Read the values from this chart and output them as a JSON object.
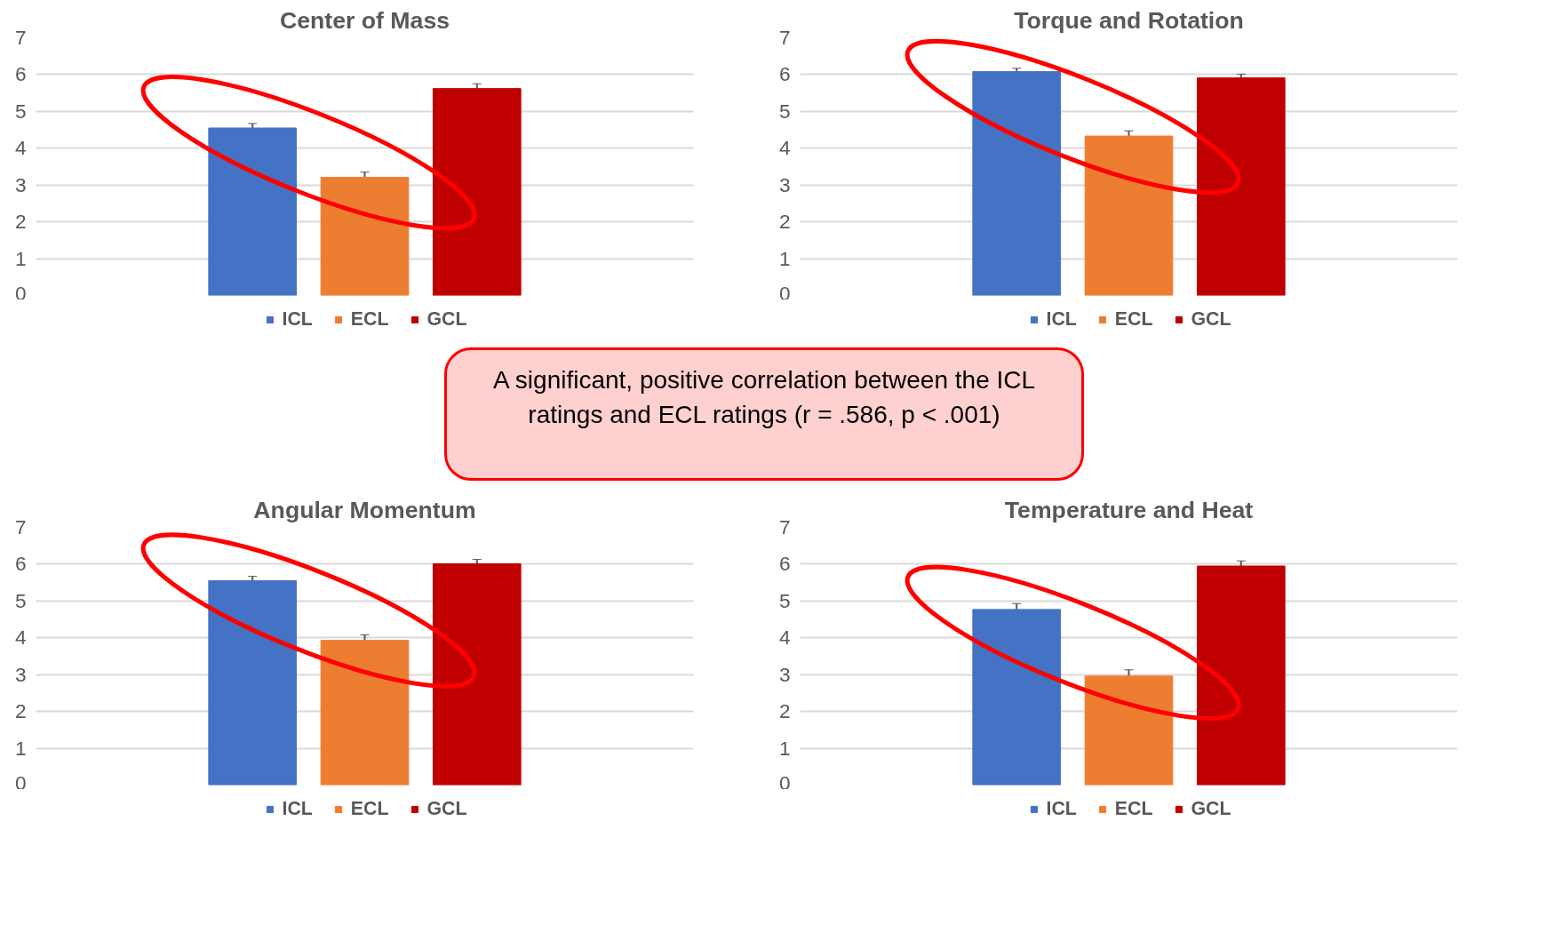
{
  "chart_data": [
    {
      "type": "bar",
      "title": "Center of Mass",
      "categories": [
        null
      ],
      "ylim": [
        0,
        7
      ],
      "yticks": [
        0,
        1,
        2,
        3,
        4,
        5,
        6,
        7
      ],
      "grid": "y",
      "legend": "bottom",
      "series": [
        {
          "name": "ICL",
          "color": "#4472c4",
          "values": [
            4.55
          ],
          "errors": [
            0.12
          ]
        },
        {
          "name": "ECL",
          "color": "#ed7d31",
          "values": [
            3.21
          ],
          "errors": [
            0.14
          ]
        },
        {
          "name": "GCL",
          "color": "#c00000",
          "values": [
            5.62
          ],
          "errors": [
            0.13
          ]
        }
      ]
    },
    {
      "type": "bar",
      "title": "Torque and Rotation",
      "categories": [
        null
      ],
      "ylim": [
        0,
        7
      ],
      "yticks": [
        0,
        1,
        2,
        3,
        4,
        5,
        6,
        7
      ],
      "grid": "y",
      "legend": "bottom",
      "series": [
        {
          "name": "ICL",
          "color": "#4472c4",
          "values": [
            6.08
          ],
          "errors": [
            0.09
          ]
        },
        {
          "name": "ECL",
          "color": "#ed7d31",
          "values": [
            4.33
          ],
          "errors": [
            0.14
          ]
        },
        {
          "name": "GCL",
          "color": "#c00000",
          "values": [
            5.91
          ],
          "errors": [
            0.1
          ]
        }
      ]
    },
    {
      "type": "other",
      "annotations": [
        "A significant, positive correlation between the ICL ratings and ECL ratings (r = .586, p < .001)"
      ]
    },
    {
      "type": "bar",
      "title": "Angular Momentum",
      "categories": [
        null
      ],
      "ylim": [
        0,
        7
      ],
      "yticks": [
        0,
        1,
        2,
        3,
        4,
        5,
        6,
        7
      ],
      "grid": "y",
      "legend": "bottom",
      "series": [
        {
          "name": "ICL",
          "color": "#4472c4",
          "values": [
            5.55
          ],
          "errors": [
            0.12
          ]
        },
        {
          "name": "ECL",
          "color": "#ed7d31",
          "values": [
            3.93
          ],
          "errors": [
            0.15
          ]
        },
        {
          "name": "GCL",
          "color": "#c00000",
          "values": [
            6.01
          ],
          "errors": [
            0.12
          ]
        }
      ]
    },
    {
      "type": "bar",
      "title": "Temperature and Heat",
      "categories": [
        null
      ],
      "ylim": [
        0,
        7
      ],
      "yticks": [
        0,
        1,
        2,
        3,
        4,
        5,
        6,
        7
      ],
      "grid": "y",
      "legend": "bottom",
      "series": [
        {
          "name": "ICL",
          "color": "#4472c4",
          "values": [
            4.77
          ],
          "errors": [
            0.16
          ]
        },
        {
          "name": "ECL",
          "color": "#ed7d31",
          "values": [
            2.96
          ],
          "errors": [
            0.17
          ]
        },
        {
          "name": "GCL",
          "color": "#c00000",
          "values": [
            5.95
          ],
          "errors": [
            0.14
          ]
        }
      ]
    }
  ]
}
